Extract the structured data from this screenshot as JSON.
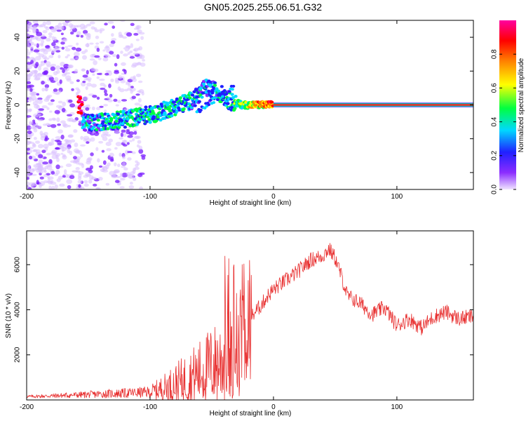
{
  "title": "GN05.2025.255.06.51.G32",
  "chart_data": [
    {
      "type": "heatmap",
      "xlabel": "Height of straight line (km)",
      "ylabel": "Frequency (Hz)",
      "xlim": [
        -200,
        162
      ],
      "ylim": [
        -50,
        50
      ],
      "xticks": [
        -200,
        -100,
        0,
        100
      ],
      "yticks": [
        -40,
        -20,
        0,
        20,
        40
      ],
      "colorbar": {
        "label": "Normalized spectral amplitude",
        "range": [
          0,
          1
        ],
        "ticks": [
          "0.0",
          "0.2",
          "0.4",
          "0.6",
          "0.8"
        ],
        "colors": [
          "#e6d2ff",
          "#6a00ff",
          "#0000ff",
          "#00c8ff",
          "#00ff00",
          "#ffff00",
          "#ff8000",
          "#ff0000",
          "#ff00a0"
        ]
      },
      "ridge": [
        {
          "x": -155,
          "y": -11,
          "amp": 0.35
        },
        {
          "x": -140,
          "y": -10,
          "amp": 0.4
        },
        {
          "x": -125,
          "y": -9,
          "amp": 0.45
        },
        {
          "x": -110,
          "y": -7,
          "amp": 0.45
        },
        {
          "x": -95,
          "y": -5,
          "amp": 0.45
        },
        {
          "x": -80,
          "y": -1,
          "amp": 0.45
        },
        {
          "x": -65,
          "y": 3,
          "amp": 0.4
        },
        {
          "x": -55,
          "y": 10,
          "amp": 0.35
        },
        {
          "x": -45,
          "y": 8,
          "amp": 0.4
        },
        {
          "x": -35,
          "y": 2,
          "amp": 0.45
        },
        {
          "x": -25,
          "y": 0,
          "amp": 0.6
        },
        {
          "x": -10,
          "y": 0,
          "amp": 0.8
        },
        {
          "x": 0,
          "y": 0,
          "amp": 0.9
        },
        {
          "x": 160,
          "y": 0,
          "amp": 1.0
        }
      ]
    },
    {
      "type": "line",
      "xlabel": "Height of straight line (km)",
      "ylabel": "SNR (10 * v/v)",
      "xlim": [
        -200,
        162
      ],
      "ylim": [
        0,
        7500
      ],
      "xticks": [
        -200,
        -100,
        0,
        100
      ],
      "yticks": [
        2000,
        4000,
        6000
      ],
      "series": [
        {
          "color": "#e83030",
          "x": [
            -200,
            -180,
            -160,
            -140,
            -120,
            -100,
            -90,
            -80,
            -70,
            -60,
            -50,
            -40,
            -35,
            -30,
            -25,
            -20,
            -15,
            -10,
            -5,
            0,
            10,
            20,
            30,
            40,
            45,
            50,
            55,
            60,
            70,
            80,
            90,
            100,
            110,
            120,
            130,
            140,
            150,
            162
          ],
          "y": [
            150,
            180,
            220,
            260,
            300,
            350,
            500,
            700,
            900,
            1200,
            1500,
            1800,
            2000,
            2600,
            3200,
            3500,
            3900,
            4200,
            4600,
            4900,
            5300,
            5700,
            6200,
            6400,
            6700,
            6300,
            5500,
            4600,
            4300,
            3800,
            4100,
            3300,
            3600,
            3200,
            3700,
            3900,
            3600,
            3700
          ]
        }
      ]
    }
  ]
}
